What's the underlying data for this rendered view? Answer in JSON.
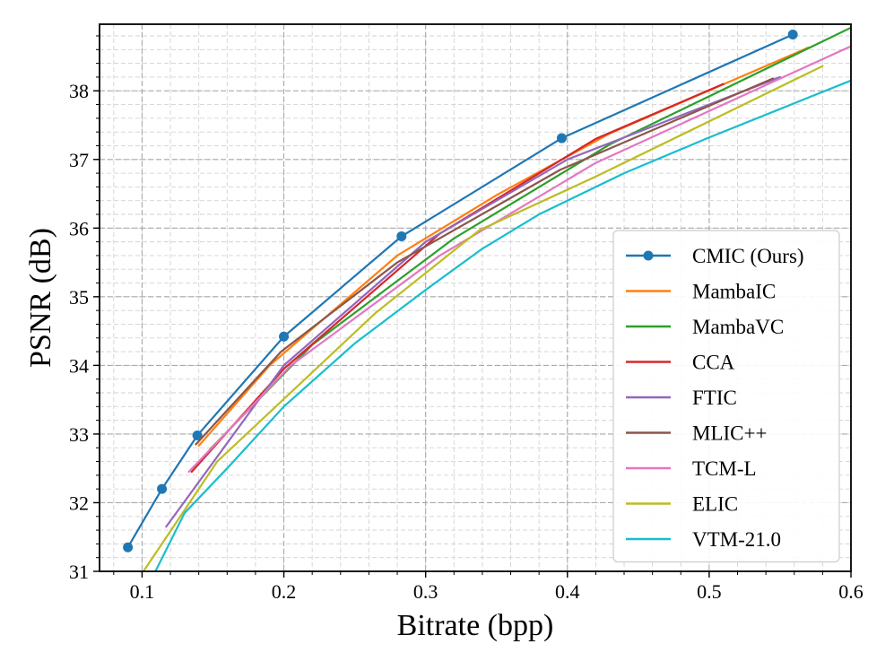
{
  "chart_data": {
    "type": "line",
    "title": "",
    "xlabel": "Bitrate (bpp)",
    "ylabel": "PSNR (dB)",
    "xlim": [
      0.07,
      0.6
    ],
    "ylim": [
      31.0,
      38.97
    ],
    "xticks": [
      0.1,
      0.2,
      0.3,
      0.4,
      0.5,
      0.6
    ],
    "xtick_labels": [
      "0.1",
      "0.2",
      "0.3",
      "0.4",
      "0.5",
      "0.6"
    ],
    "yticks": [
      31,
      32,
      33,
      34,
      35,
      36,
      37,
      38
    ],
    "ytick_labels": [
      "31",
      "32",
      "33",
      "34",
      "35",
      "36",
      "37",
      "38"
    ],
    "grid": true,
    "legend_position": "lower-right",
    "series": [
      {
        "name": "CMIC (Ours)",
        "color": "#1f77b4",
        "markers": true,
        "x": [
          0.09,
          0.114,
          0.139,
          0.2,
          0.283,
          0.396,
          0.559
        ],
        "y": [
          31.35,
          32.2,
          32.98,
          34.42,
          35.88,
          37.31,
          38.82
        ]
      },
      {
        "name": "MambaIC",
        "color": "#ff7f0e",
        "markers": false,
        "x": [
          0.14,
          0.19,
          0.28,
          0.35,
          0.43,
          0.57
        ],
        "y": [
          32.83,
          34.0,
          35.6,
          36.48,
          37.38,
          38.63
        ]
      },
      {
        "name": "MambaVC",
        "color": "#2ca02c",
        "markers": false,
        "x": [
          0.148,
          0.22,
          0.32,
          0.43,
          0.6
        ],
        "y": [
          32.78,
          34.3,
          35.85,
          37.22,
          38.92
        ]
      },
      {
        "name": "CCA",
        "color": "#d62728",
        "markers": false,
        "x": [
          0.135,
          0.2,
          0.31,
          0.42,
          0.51
        ],
        "y": [
          32.45,
          33.95,
          35.92,
          37.3,
          38.1
        ]
      },
      {
        "name": "FTIC",
        "color": "#9467bd",
        "markers": false,
        "x": [
          0.117,
          0.2,
          0.3,
          0.4,
          0.55
        ],
        "y": [
          31.65,
          34.0,
          35.8,
          37.0,
          38.2
        ]
      },
      {
        "name": "MLIC++",
        "color": "#8c564b",
        "markers": false,
        "x": [
          0.138,
          0.198,
          0.28,
          0.395,
          0.545
        ],
        "y": [
          32.85,
          34.2,
          35.5,
          36.85,
          38.18
        ]
      },
      {
        "name": "TCM-L",
        "color": "#e377c2",
        "markers": false,
        "x": [
          0.133,
          0.205,
          0.31,
          0.42,
          0.6
        ],
        "y": [
          32.45,
          34.0,
          35.6,
          36.95,
          38.65
        ]
      },
      {
        "name": "ELIC",
        "color": "#bcbd22",
        "markers": false,
        "x": [
          0.1,
          0.153,
          0.265,
          0.338,
          0.42,
          0.58
        ],
        "y": [
          30.97,
          32.6,
          34.77,
          35.97,
          36.75,
          38.36
        ]
      },
      {
        "name": "VTM-21.0",
        "color": "#17becf",
        "markers": false,
        "x": [
          0.107,
          0.13,
          0.16,
          0.2,
          0.25,
          0.3,
          0.34,
          0.38,
          0.44,
          0.5,
          0.6
        ],
        "y": [
          30.9,
          31.85,
          32.5,
          33.4,
          34.32,
          35.1,
          35.7,
          36.2,
          36.8,
          37.32,
          38.15
        ]
      }
    ]
  }
}
